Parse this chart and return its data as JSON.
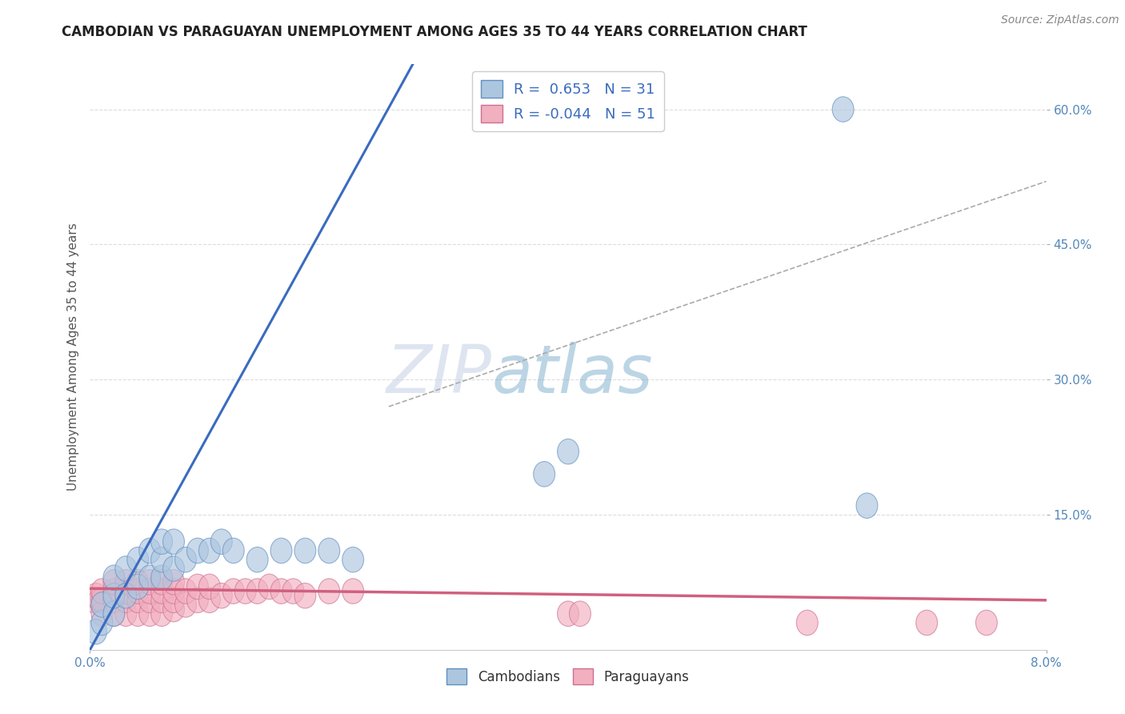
{
  "title": "CAMBODIAN VS PARAGUAYAN UNEMPLOYMENT AMONG AGES 35 TO 44 YEARS CORRELATION CHART",
  "source_text": "Source: ZipAtlas.com",
  "ylabel": "Unemployment Among Ages 35 to 44 years",
  "xlim": [
    0.0,
    0.08
  ],
  "ylim": [
    0.0,
    0.65
  ],
  "xticks": [
    0.0,
    0.08
  ],
  "xticklabels": [
    "0.0%",
    "8.0%"
  ],
  "yticks": [
    0.15,
    0.3,
    0.45,
    0.6
  ],
  "yticklabels": [
    "15.0%",
    "30.0%",
    "45.0%",
    "60.0%"
  ],
  "cambodian_color": "#adc6e0",
  "paraguayan_color": "#f2afc0",
  "cambodian_line_color": "#3a6bbf",
  "paraguayan_line_color": "#d06080",
  "dashed_line_color": "#aaaaaa",
  "legend_R_cambodian": "0.653",
  "legend_N_cambodian": "31",
  "legend_R_paraguayan": "-0.044",
  "legend_N_paraguayan": "51",
  "watermark_part1": "ZIP",
  "watermark_part2": "atlas",
  "background_color": "#ffffff",
  "grid_color": "#dddddd",
  "cambodian_x": [
    0.0005,
    0.001,
    0.001,
    0.002,
    0.002,
    0.002,
    0.003,
    0.003,
    0.004,
    0.004,
    0.005,
    0.005,
    0.006,
    0.006,
    0.006,
    0.007,
    0.007,
    0.008,
    0.009,
    0.01,
    0.011,
    0.012,
    0.014,
    0.016,
    0.018,
    0.02,
    0.022,
    0.038,
    0.04,
    0.063,
    0.065
  ],
  "cambodian_y": [
    0.02,
    0.03,
    0.05,
    0.04,
    0.06,
    0.08,
    0.06,
    0.09,
    0.07,
    0.1,
    0.08,
    0.11,
    0.08,
    0.1,
    0.12,
    0.09,
    0.12,
    0.1,
    0.11,
    0.11,
    0.12,
    0.11,
    0.1,
    0.11,
    0.11,
    0.11,
    0.1,
    0.195,
    0.22,
    0.6,
    0.16
  ],
  "paraguayan_x": [
    0.0003,
    0.0005,
    0.0008,
    0.001,
    0.001,
    0.001,
    0.002,
    0.002,
    0.002,
    0.002,
    0.003,
    0.003,
    0.003,
    0.003,
    0.004,
    0.004,
    0.004,
    0.004,
    0.005,
    0.005,
    0.005,
    0.005,
    0.006,
    0.006,
    0.006,
    0.006,
    0.007,
    0.007,
    0.007,
    0.007,
    0.008,
    0.008,
    0.009,
    0.009,
    0.01,
    0.01,
    0.011,
    0.012,
    0.013,
    0.014,
    0.015,
    0.016,
    0.017,
    0.018,
    0.02,
    0.022,
    0.04,
    0.041,
    0.06,
    0.07,
    0.075
  ],
  "paraguayan_y": [
    0.055,
    0.06,
    0.055,
    0.04,
    0.055,
    0.065,
    0.04,
    0.055,
    0.065,
    0.075,
    0.04,
    0.055,
    0.065,
    0.075,
    0.04,
    0.055,
    0.065,
    0.075,
    0.04,
    0.055,
    0.065,
    0.075,
    0.04,
    0.055,
    0.065,
    0.075,
    0.045,
    0.055,
    0.065,
    0.075,
    0.05,
    0.065,
    0.055,
    0.07,
    0.055,
    0.07,
    0.06,
    0.065,
    0.065,
    0.065,
    0.07,
    0.065,
    0.065,
    0.06,
    0.065,
    0.065,
    0.04,
    0.04,
    0.03,
    0.03,
    0.03
  ],
  "cambodian_trendline_x": [
    0.0,
    0.027
  ],
  "cambodian_trendline_y": [
    0.0,
    0.65
  ],
  "paraguayan_trendline_x": [
    0.0,
    0.08
  ],
  "paraguayan_trendline_y": [
    0.068,
    0.055
  ],
  "dashed_trendline_x": [
    0.025,
    0.08
  ],
  "dashed_trendline_y": [
    0.27,
    0.52
  ]
}
